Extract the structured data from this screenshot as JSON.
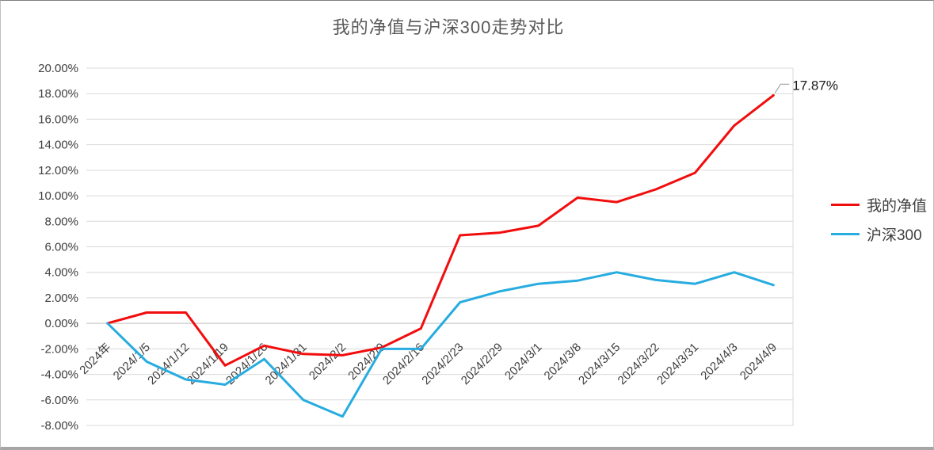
{
  "chart_data": {
    "type": "line",
    "title": "我的净值与沪深300走势对比",
    "title_color": "#595959",
    "categories": [
      "2024年",
      "2024/1/5",
      "2024/1/12",
      "2024/1/19",
      "2024/1/26",
      "2024/1/31",
      "2024/2/2",
      "2024/2/9",
      "2024/2/16",
      "2024/2/23",
      "2024/2/29",
      "2024/3/1",
      "2024/3/8",
      "2024/3/15",
      "2024/3/22",
      "2024/3/31",
      "2024/4/3",
      "2024/4/9"
    ],
    "series": [
      {
        "name": "我的净值",
        "color": "#f20d0d",
        "values": [
          0.0,
          0.85,
          0.85,
          -3.3,
          -1.75,
          -2.4,
          -2.5,
          -1.9,
          -0.4,
          6.9,
          7.1,
          7.65,
          9.85,
          9.5,
          10.5,
          11.8,
          15.5,
          17.87
        ]
      },
      {
        "name": "沪深300",
        "color": "#27ace0",
        "values": [
          0.0,
          -3.0,
          -4.4,
          -4.8,
          -2.8,
          -6.0,
          -7.3,
          -2.0,
          -2.0,
          1.65,
          2.5,
          3.1,
          3.35,
          4.0,
          3.4,
          3.1,
          4.0,
          3.0
        ]
      }
    ],
    "ylim": [
      -8,
      20
    ],
    "ytick_step": 2,
    "ytick_decimals": 2,
    "ytick_suffix": "%",
    "grid": true,
    "grid_color": "#d9d9d9",
    "zero_axis_color": "#bfbfbf",
    "axis_label_color": "#404040",
    "legend_position": "right",
    "end_label": {
      "series": "我的净值",
      "text": "17.87%"
    }
  }
}
